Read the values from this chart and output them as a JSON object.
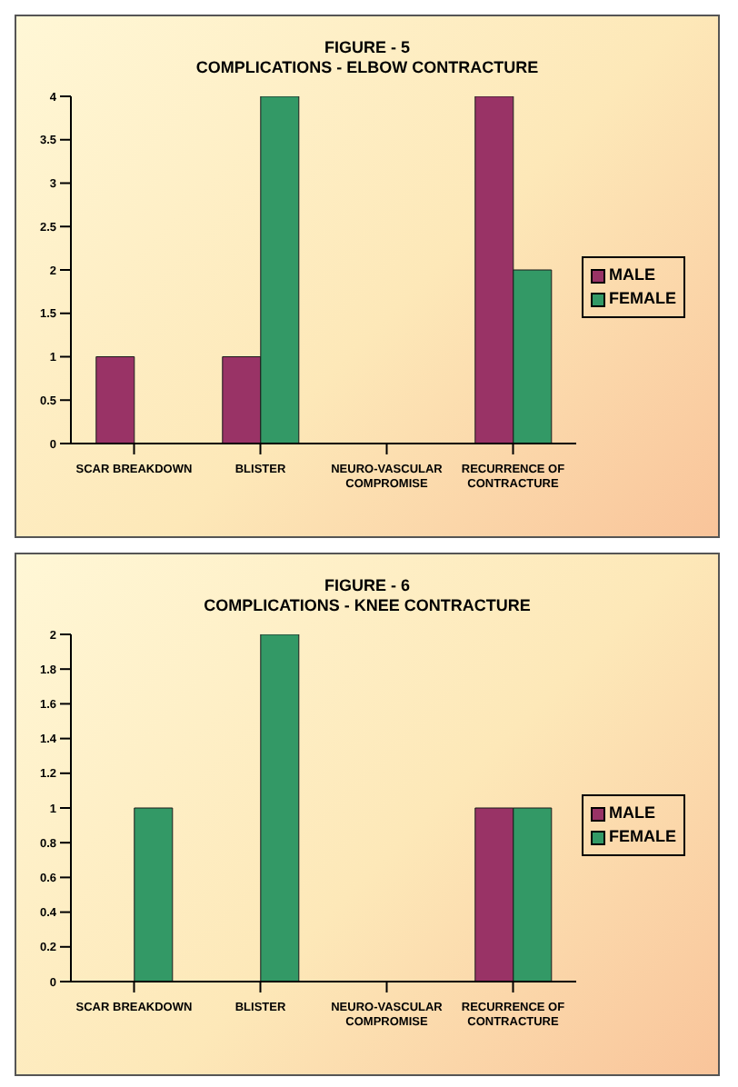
{
  "chart_data": [
    {
      "type": "bar",
      "title": "FIGURE - 5",
      "subtitle": "COMPLICATIONS - ELBOW CONTRACTURE",
      "categories": [
        "SCAR BREAKDOWN",
        "BLISTER",
        "NEURO-VASCULAR COMPROMISE",
        "RECURRENCE OF CONTRACTURE"
      ],
      "series": [
        {
          "name": "MALE",
          "color": "#993366",
          "values": [
            1,
            1,
            0,
            4
          ]
        },
        {
          "name": "FEMALE",
          "color": "#339966",
          "values": [
            0,
            4,
            0,
            2
          ]
        }
      ],
      "ylim": [
        0,
        4
      ],
      "yticks": [
        0,
        0.5,
        1,
        1.5,
        2,
        2.5,
        3,
        3.5,
        4
      ],
      "grid": false,
      "legend": "right"
    },
    {
      "type": "bar",
      "title": "FIGURE - 6",
      "subtitle": "COMPLICATIONS - KNEE CONTRACTURE",
      "categories": [
        "SCAR BREAKDOWN",
        "BLISTER",
        "NEURO-VASCULAR COMPROMISE",
        "RECURRENCE OF CONTRACTURE"
      ],
      "series": [
        {
          "name": "MALE",
          "color": "#993366",
          "values": [
            0,
            0,
            0,
            1
          ]
        },
        {
          "name": "FEMALE",
          "color": "#339966",
          "values": [
            1,
            2,
            0,
            1
          ]
        }
      ],
      "ylim": [
        0,
        2
      ],
      "yticks": [
        0,
        0.2,
        0.4,
        0.6,
        0.8,
        1,
        1.2,
        1.4,
        1.6,
        1.8,
        2
      ],
      "grid": false,
      "legend": "right"
    }
  ]
}
